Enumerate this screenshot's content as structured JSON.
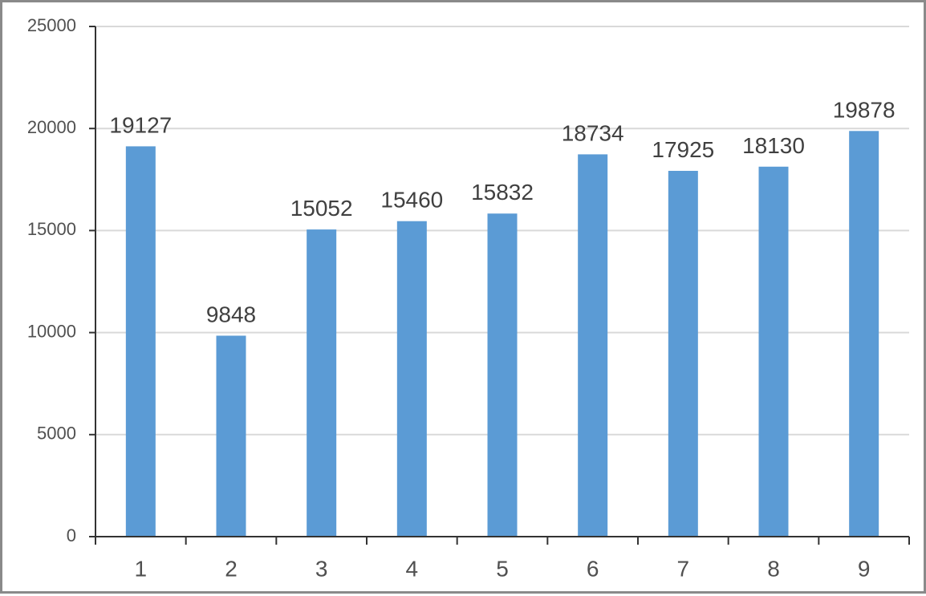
{
  "chart_data": {
    "type": "bar",
    "categories": [
      "1",
      "2",
      "3",
      "4",
      "5",
      "6",
      "7",
      "8",
      "9"
    ],
    "values": [
      19127,
      9848,
      15052,
      15460,
      15832,
      18734,
      17925,
      18130,
      19878
    ],
    "data_labels": [
      "19127",
      "9848",
      "15052",
      "15460",
      "15832",
      "18734",
      "17925",
      "18130",
      "19878"
    ],
    "y_ticks": [
      "0",
      "5000",
      "10000",
      "15000",
      "20000",
      "25000"
    ],
    "ylim": [
      0,
      25000
    ],
    "grid": true,
    "legend": "none",
    "colors": {
      "bar": "#5b9bd5",
      "grid": "#d9d9d9",
      "axis": "#333333"
    }
  }
}
